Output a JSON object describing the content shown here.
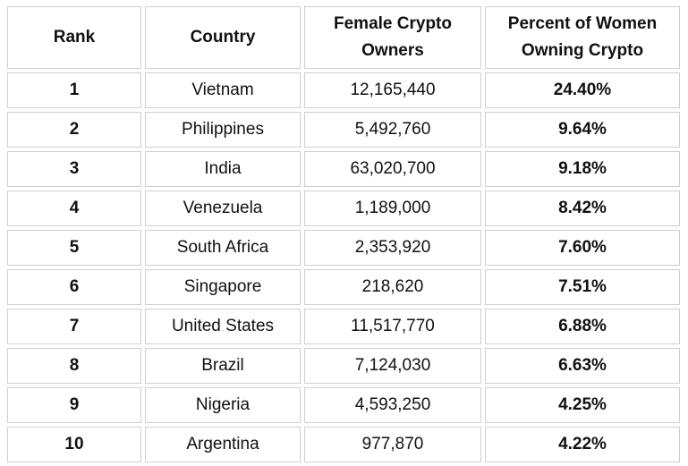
{
  "table": {
    "headers": {
      "rank": "Rank",
      "country": "Country",
      "owners": "Female Crypto Owners",
      "percent": "Percent of Women Owning Crypto"
    },
    "rows": [
      {
        "rank": "1",
        "country": "Vietnam",
        "owners": "12,165,440",
        "percent": "24.40%"
      },
      {
        "rank": "2",
        "country": "Philippines",
        "owners": "5,492,760",
        "percent": "9.64%"
      },
      {
        "rank": "3",
        "country": "India",
        "owners": "63,020,700",
        "percent": "9.18%"
      },
      {
        "rank": "4",
        "country": "Venezuela",
        "owners": "1,189,000",
        "percent": "8.42%"
      },
      {
        "rank": "5",
        "country": "South Africa",
        "owners": "2,353,920",
        "percent": "7.60%"
      },
      {
        "rank": "6",
        "country": "Singapore",
        "owners": "218,620",
        "percent": "7.51%"
      },
      {
        "rank": "7",
        "country": "United States",
        "owners": "11,517,770",
        "percent": "6.88%"
      },
      {
        "rank": "8",
        "country": "Brazil",
        "owners": "7,124,030",
        "percent": "6.63%"
      },
      {
        "rank": "9",
        "country": "Nigeria",
        "owners": "4,593,250",
        "percent": "4.25%"
      },
      {
        "rank": "10",
        "country": "Argentina",
        "owners": "977,870",
        "percent": "4.22%"
      }
    ]
  }
}
